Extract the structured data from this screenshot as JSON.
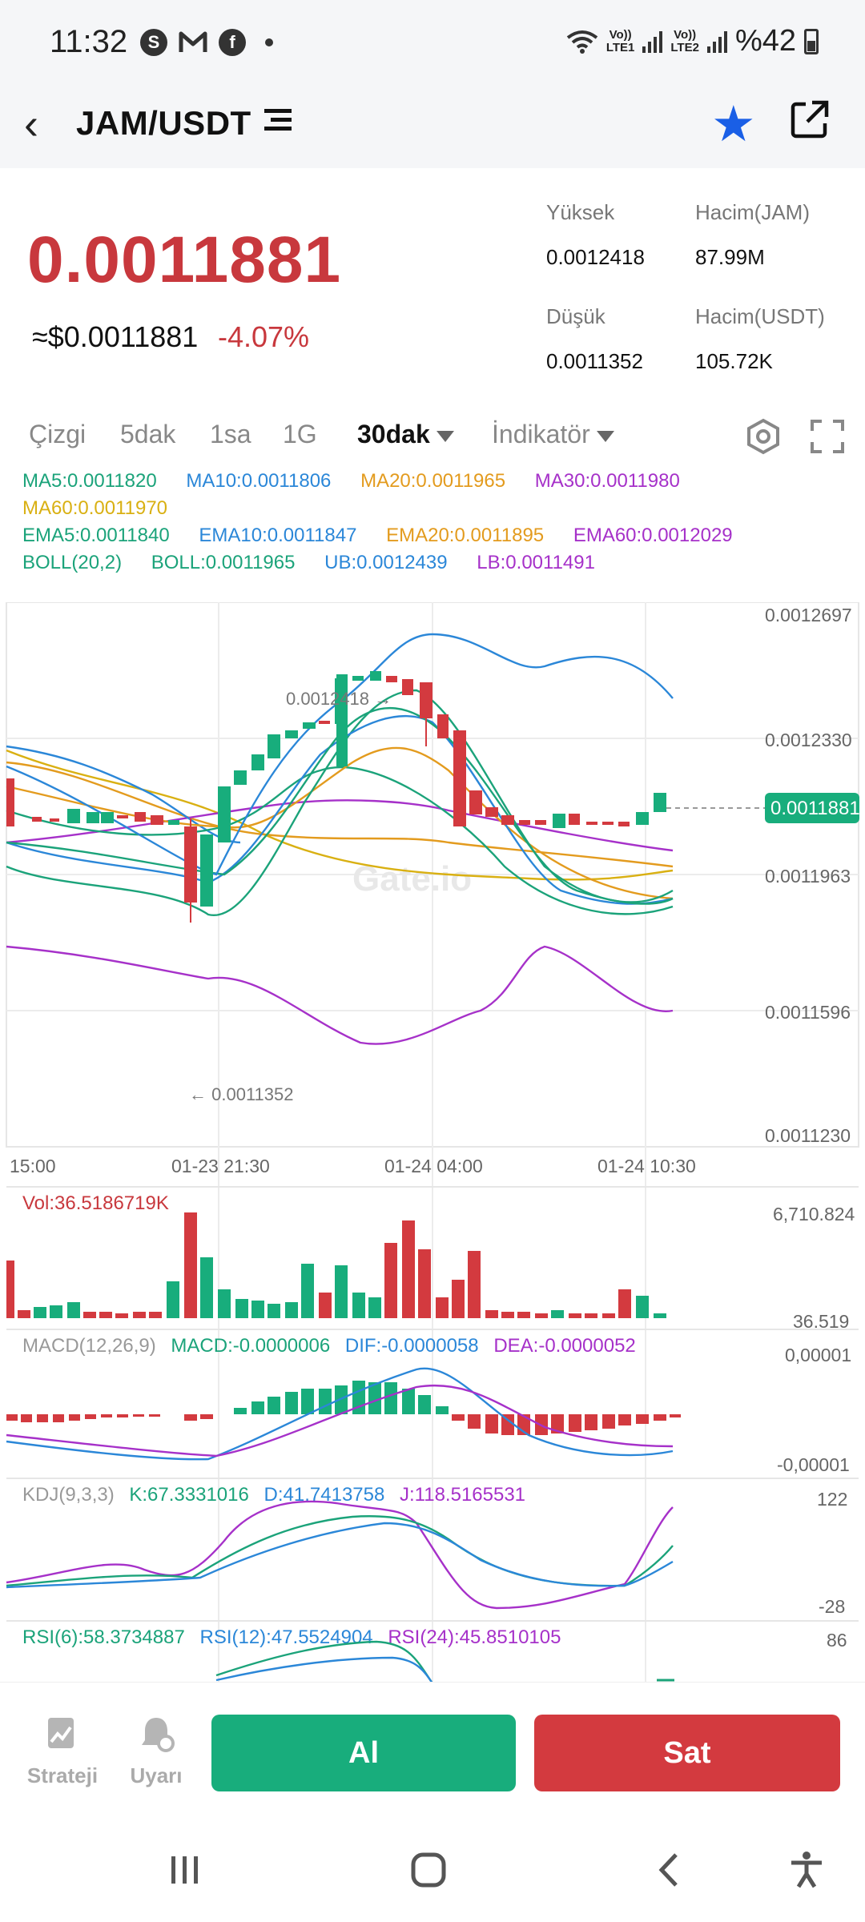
{
  "status_bar": {
    "time": "11:32",
    "battery": "%42",
    "left_icons": [
      "s-icon",
      "mail-icon",
      "facebook-icon"
    ],
    "lte1": "Vo))\nLTE1",
    "lte2": "Vo))\nLTE2"
  },
  "header": {
    "pair": "JAM/USDT",
    "favorite_color": "#1a5fe6"
  },
  "ticker": {
    "price": "0.0011881",
    "usd_price": "≈$0.0011881",
    "change": "-4.07%",
    "high_label": "Yüksek",
    "high_value": "0.0012418",
    "vol_jam_label": "Hacim(JAM)",
    "vol_jam_value": "87.99M",
    "low_label": "Düşük",
    "low_value": "0.0011352",
    "vol_usdt_label": "Hacim(USDT)",
    "vol_usdt_value": "105.72K"
  },
  "tabs": {
    "line": "Çizgi",
    "m5": "5dak",
    "h1": "1sa",
    "d1": "1G",
    "m30": "30dak",
    "indicator": "İndikatör"
  },
  "legend": {
    "ma5": "MA5:0.0011820",
    "ma10": "MA10:0.0011806",
    "ma20": "MA20:0.0011965",
    "ma30": "MA30:0.0011980",
    "ma60": "MA60:0.0011970",
    "ema5": "EMA5:0.0011840",
    "ema10": "EMA10:0.0011847",
    "ema20": "EMA20:0.0011895",
    "ema60": "EMA60:0.0012029",
    "boll": "BOLL(20,2)",
    "boll_mid": "BOLL:0.0011965",
    "ub": "UB:0.0012439",
    "lb": "LB:0.0011491"
  },
  "chart": {
    "y_ticks": [
      "0.0012697",
      "0.0012330",
      "0.0011963",
      "0.0011596",
      "0.0011230"
    ],
    "x_ticks": [
      "15:00",
      "01-23 21:30",
      "01-24 04:00",
      "01-24 10:30"
    ],
    "high_marker": "0.0012418",
    "low_marker": "0.0011352",
    "current_price": "0.0011881",
    "watermark": "Gate.io",
    "up_color": "#18ad7c",
    "down_color": "#d33a3f"
  },
  "volume": {
    "label": "Vol:36.5186719K",
    "max": "6,710.824",
    "min": "36.519"
  },
  "macd": {
    "name": "MACD(12,26,9)",
    "macd": "MACD:-0.0000006",
    "dif": "DIF:-0.0000058",
    "dea": "DEA:-0.0000052",
    "top": "0,00001",
    "bottom": "-0,00001"
  },
  "kdj": {
    "name": "KDJ(9,3,3)",
    "k": "K:67.3331016",
    "d": "D:41.7413758",
    "j": "J:118.5165531",
    "top": "122",
    "bottom": "-28"
  },
  "rsi": {
    "r6": "RSI(6):58.3734887",
    "r12": "RSI(12):47.5524904",
    "r24": "RSI(24):45.8510105",
    "top": "86"
  },
  "bottom_bar": {
    "strategy": "Strateji",
    "alert": "Uyarı",
    "buy": "Al",
    "sell": "Sat"
  }
}
